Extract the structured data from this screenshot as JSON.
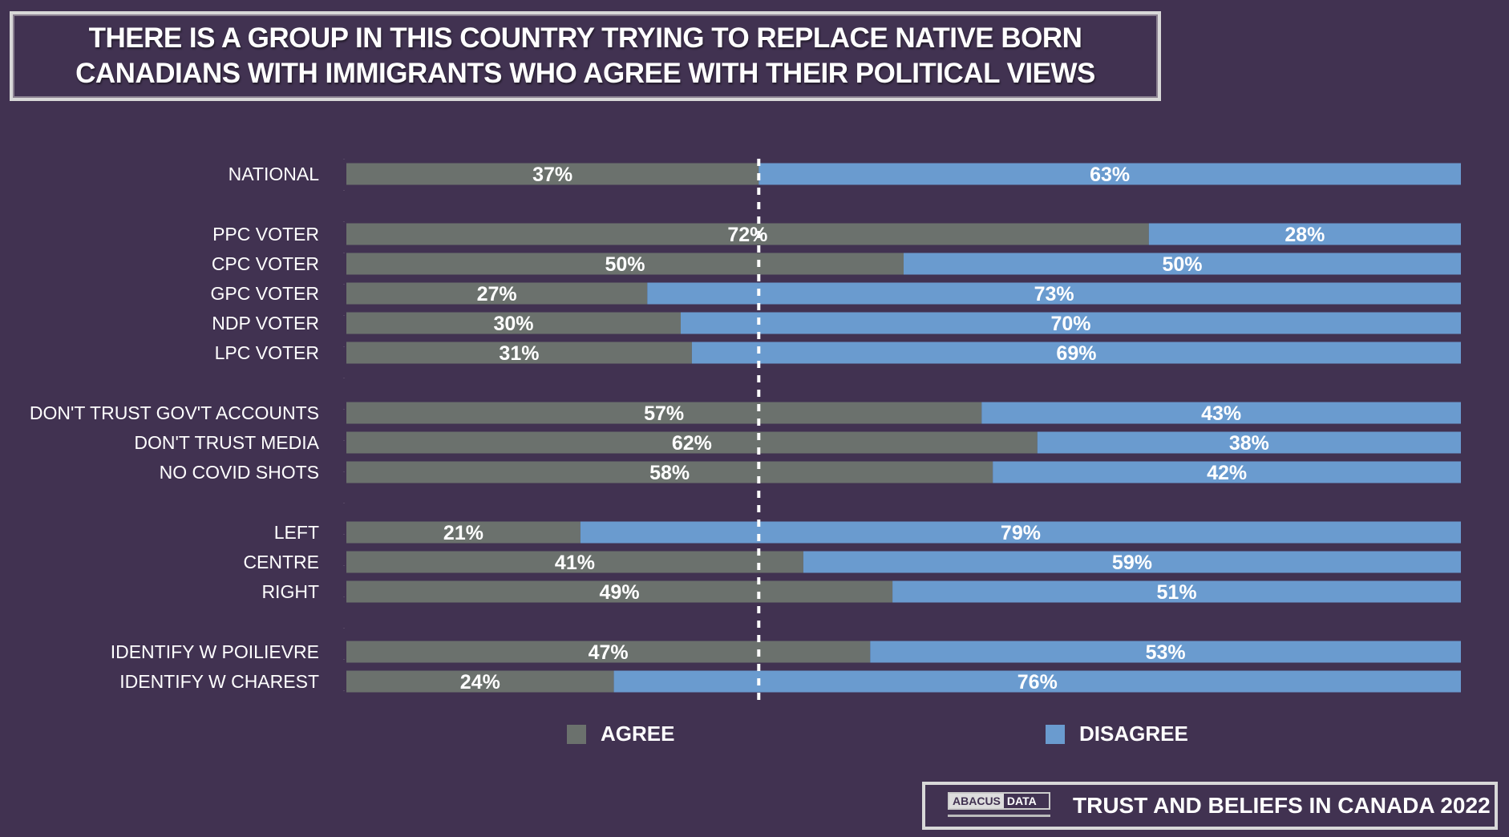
{
  "title": {
    "line1": "THERE IS A GROUP IN THIS COUNTRY TRYING TO REPLACE NATIVE BORN",
    "line2": "CANADIANS WITH IMMIGRANTS WHO AGREE WITH THEIR POLITICAL VIEWS"
  },
  "colors": {
    "background": "#413251",
    "agree": "#6b716d",
    "disagree": "#6a9bcf"
  },
  "chart_data": {
    "type": "bar",
    "orientation": "horizontal-stacked-100",
    "categories": [
      "NATIONAL",
      "PPC VOTER",
      "CPC VOTER",
      "GPC VOTER",
      "NDP VOTER",
      "LPC VOTER",
      "DON'T TRUST GOV'T ACCOUNTS",
      "DON'T TRUST MEDIA",
      "NO COVID SHOTS",
      "LEFT",
      "CENTRE",
      "RIGHT",
      "IDENTIFY W POILIEVRE",
      "IDENTIFY W CHAREST"
    ],
    "groups": [
      [
        0
      ],
      [
        1,
        2,
        3,
        4,
        5
      ],
      [
        6,
        7,
        8
      ],
      [
        9,
        10,
        11
      ],
      [
        12,
        13
      ]
    ],
    "series": [
      {
        "name": "AGREE",
        "values": [
          37,
          72,
          50,
          27,
          30,
          31,
          57,
          62,
          58,
          21,
          41,
          49,
          47,
          24
        ]
      },
      {
        "name": "DISAGREE",
        "values": [
          63,
          28,
          50,
          73,
          70,
          69,
          43,
          38,
          42,
          79,
          59,
          51,
          53,
          76
        ]
      }
    ],
    "reference_line": 37,
    "xlim": [
      0,
      100
    ],
    "legend_position": "bottom"
  },
  "footer": {
    "logo_left": "ABACUS",
    "logo_right": "DATA",
    "text": "TRUST AND BELIEFS IN CANADA 2022"
  }
}
